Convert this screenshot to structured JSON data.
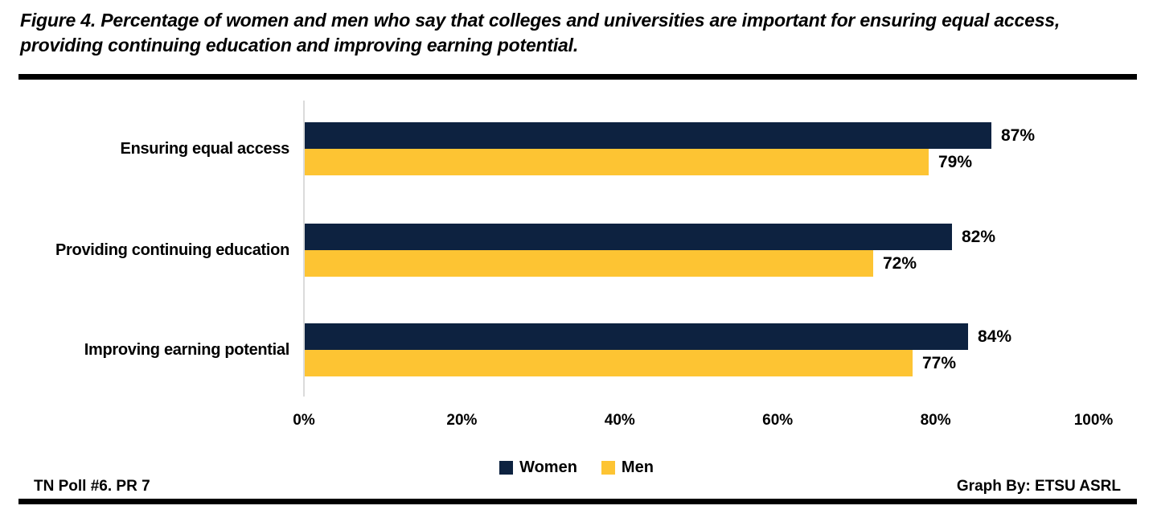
{
  "title": {
    "line1": "Figure 4. Percentage of women and men who say that colleges and universities are important for ensuring equal access,",
    "line2": "providing continuing education and improving earning potential."
  },
  "footer": {
    "left": "TN Poll #6. PR 7",
    "right": "Graph By: ETSU ASRL"
  },
  "colors": {
    "women": "#0D2240",
    "men": "#FDC433",
    "axis_line": "#DBDBDB",
    "rule": "#000000",
    "text": "#000000"
  },
  "chart_data": {
    "type": "bar",
    "orientation": "horizontal",
    "title": "Figure 4. Percentage of women and men who say that colleges and universities are important for ensuring equal access, providing continuing education and improving earning potential.",
    "categories": [
      "Ensuring equal access",
      "Providing continuing education",
      "Improving earning potential"
    ],
    "series": [
      {
        "name": "Women",
        "color": "#0D2240",
        "values": [
          87,
          82,
          84
        ]
      },
      {
        "name": "Men",
        "color": "#FDC433",
        "values": [
          79,
          72,
          77
        ]
      }
    ],
    "data_label_format": "percent",
    "x_ticks": [
      "0%",
      "20%",
      "40%",
      "60%",
      "80%",
      "100%"
    ],
    "xlim": [
      0,
      100
    ],
    "grid": false,
    "legend_position": "bottom"
  }
}
